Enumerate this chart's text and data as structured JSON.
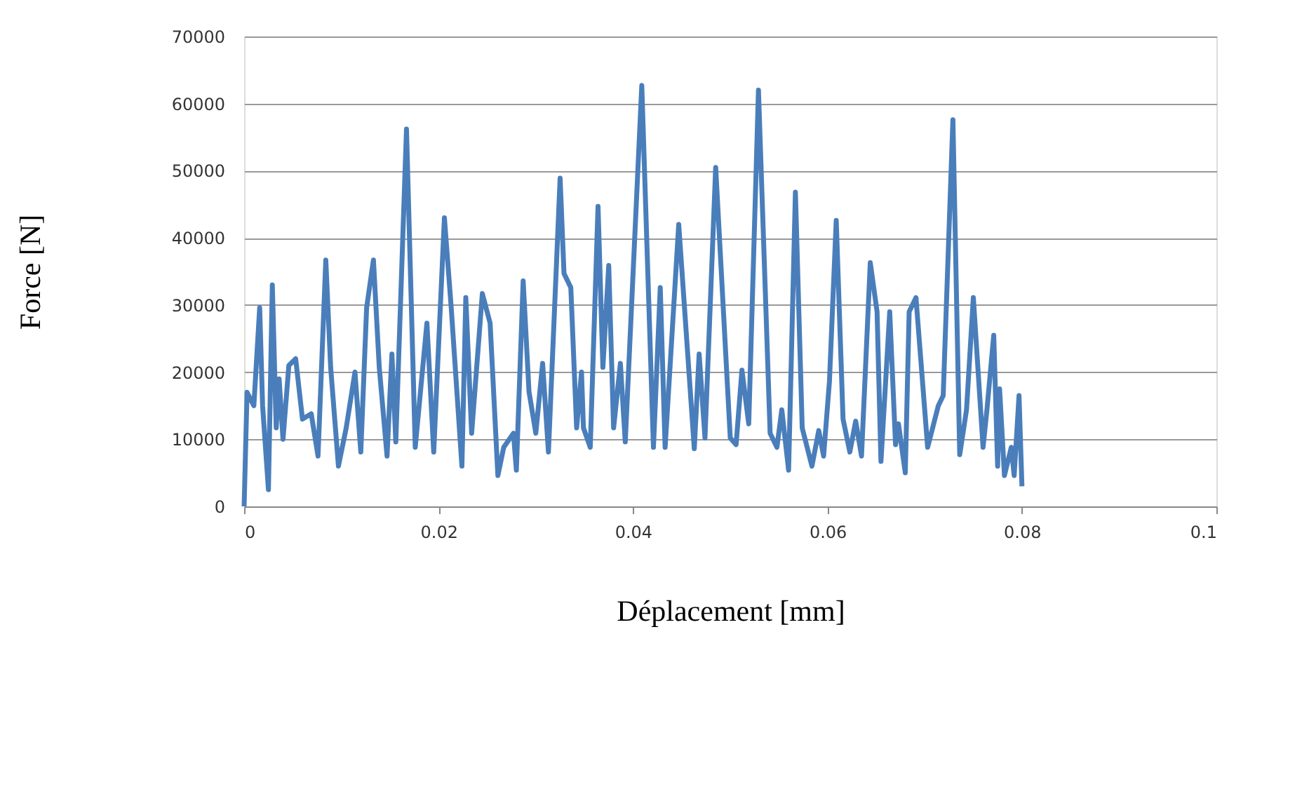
{
  "chart_data": {
    "type": "line",
    "xlabel": "Déplacement [mm]",
    "ylabel": "Force [N]",
    "x": [
      0,
      0.0003,
      0.001,
      0.0016,
      0.0019,
      0.0025,
      0.0029,
      0.0033,
      0.0036,
      0.004,
      0.0046,
      0.0053,
      0.006,
      0.0069,
      0.0076,
      0.0084,
      0.0089,
      0.0097,
      0.0105,
      0.0114,
      0.012,
      0.0126,
      0.0133,
      0.0139,
      0.0147,
      0.0152,
      0.0156,
      0.0167,
      0.0176,
      0.0188,
      0.0195,
      0.0206,
      0.0213,
      0.0224,
      0.0228,
      0.0234,
      0.0245,
      0.0253,
      0.0261,
      0.0267,
      0.0277,
      0.028,
      0.0287,
      0.0293,
      0.03,
      0.0307,
      0.0313,
      0.0325,
      0.0329,
      0.0336,
      0.0342,
      0.0347,
      0.0349,
      0.0356,
      0.0364,
      0.0369,
      0.0375,
      0.038,
      0.0387,
      0.0392,
      0.0409,
      0.0421,
      0.0428,
      0.0433,
      0.0447,
      0.0463,
      0.0468,
      0.0474,
      0.0485,
      0.05,
      0.0506,
      0.0512,
      0.0519,
      0.0529,
      0.0541,
      0.0548,
      0.0553,
      0.056,
      0.0567,
      0.0574,
      0.0584,
      0.0591,
      0.0596,
      0.0602,
      0.0609,
      0.0616,
      0.0623,
      0.0629,
      0.0635,
      0.0644,
      0.0651,
      0.0655,
      0.0664,
      0.067,
      0.0673,
      0.068,
      0.0684,
      0.0691,
      0.0703,
      0.0714,
      0.0719,
      0.0729,
      0.0736,
      0.0743,
      0.075,
      0.076,
      0.0764,
      0.0771,
      0.0775,
      0.0777,
      0.0782,
      0.0789,
      0.0792,
      0.0797,
      0.08
    ],
    "series": [
      {
        "color": "#4a7ebb",
        "values": [
          0,
          17000,
          15000,
          29600,
          15000,
          2500,
          33000,
          11700,
          19000,
          10000,
          21000,
          22000,
          13000,
          13800,
          7500,
          36700,
          20700,
          6000,
          11700,
          20000,
          8100,
          29600,
          36700,
          20700,
          7500,
          22700,
          9600,
          56200,
          8800,
          27300,
          8100,
          43000,
          29600,
          6000,
          31100,
          10900,
          31700,
          27300,
          4600,
          8800,
          10900,
          5400,
          33600,
          17100,
          10900,
          21300,
          8100,
          48900,
          34700,
          32600,
          11700,
          20000,
          11700,
          8800,
          44700,
          20700,
          35900,
          11700,
          21300,
          9600,
          62700,
          8800,
          32600,
          8800,
          42000,
          8600,
          22700,
          10200,
          50500,
          10200,
          9200,
          20300,
          12300,
          62000,
          10900,
          8800,
          14400,
          5400,
          46800,
          11700,
          6000,
          11300,
          7500,
          18600,
          42600,
          13000,
          8100,
          12700,
          7500,
          36300,
          29000,
          6700,
          29000,
          9200,
          12300,
          5000,
          29000,
          31100,
          8800,
          15000,
          16500,
          57600,
          7700,
          14400,
          31100,
          8800,
          14400,
          25500,
          6000,
          17500,
          4600,
          8800,
          4600,
          16500,
          3000
        ]
      }
    ],
    "xlim": [
      0,
      0.1
    ],
    "xticks": [
      0,
      0.02,
      0.04,
      0.06,
      0.08,
      0.1
    ],
    "ylim": [
      0,
      70000
    ],
    "yticks": [
      0,
      10000,
      20000,
      30000,
      40000,
      50000,
      60000,
      70000
    ],
    "grid": "y",
    "marker": "none",
    "line_style": "solid"
  }
}
